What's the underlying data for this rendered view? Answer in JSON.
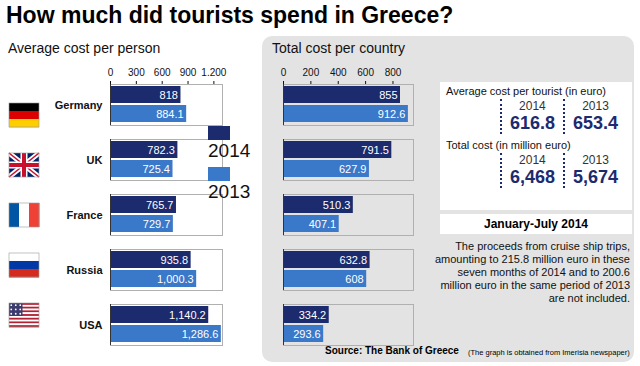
{
  "title": "How much did tourists spend in Greece?",
  "chart_data": [
    {
      "type": "bar",
      "orientation": "horizontal",
      "title": "Average cost per person",
      "categories": [
        "Germany",
        "UK",
        "France",
        "Russia",
        "USA"
      ],
      "series": [
        {
          "name": "2014",
          "color": "#1c2a6e",
          "values": [
            818,
            782.3,
            765.7,
            935.8,
            1140.2
          ],
          "value_labels": [
            "818",
            "782.3",
            "765.7",
            "935.8",
            "1,140.2"
          ]
        },
        {
          "name": "2013",
          "color": "#3a78c9",
          "values": [
            884.1,
            725.4,
            729.7,
            1000.3,
            1286.6
          ],
          "value_labels": [
            "884.1",
            "725.4",
            "729.7",
            "1,000.3",
            "1,286.6"
          ]
        }
      ],
      "xlim": [
        0,
        1300
      ],
      "xticks": [
        0,
        300,
        600,
        900,
        {
          "value": 1200,
          "label": "1.200"
        }
      ],
      "data_labels": true
    },
    {
      "type": "bar",
      "orientation": "horizontal",
      "title": "Total cost per country",
      "categories": [
        "Germany",
        "UK",
        "France",
        "Russia",
        "USA"
      ],
      "series": [
        {
          "name": "2014",
          "color": "#1c2a6e",
          "values": [
            855,
            791.5,
            510.3,
            632.8,
            334.2
          ]
        },
        {
          "name": "2013",
          "color": "#3a78c9",
          "values": [
            912.6,
            627.9,
            407.1,
            608,
            293.6
          ]
        }
      ],
      "xlim": [
        0,
        950
      ],
      "xticks": [
        0,
        200,
        400,
        600,
        800
      ],
      "data_labels": true,
      "tick_labels": "x"
    }
  ],
  "summary": [
    {
      "label": "Average cost per tourist (in euro)",
      "years": [
        "2014",
        "2013"
      ],
      "values": [
        "616.8",
        "653.4"
      ]
    },
    {
      "label": "Total cost (in million euro)",
      "years": [
        "2014",
        "2013"
      ],
      "values": [
        "6,468",
        "5,674"
      ]
    }
  ],
  "note": {
    "heading": "January-July 2014",
    "text": "The proceeds from cruise ship trips, amounting to 215.8 million euro in these seven months of 2014 and to 200.6 million euro in the same period of 2013 are not included."
  },
  "source": "Source: The Bank of Greece",
  "credit": "(The graph is obtained from Imerisia newspaper)"
}
